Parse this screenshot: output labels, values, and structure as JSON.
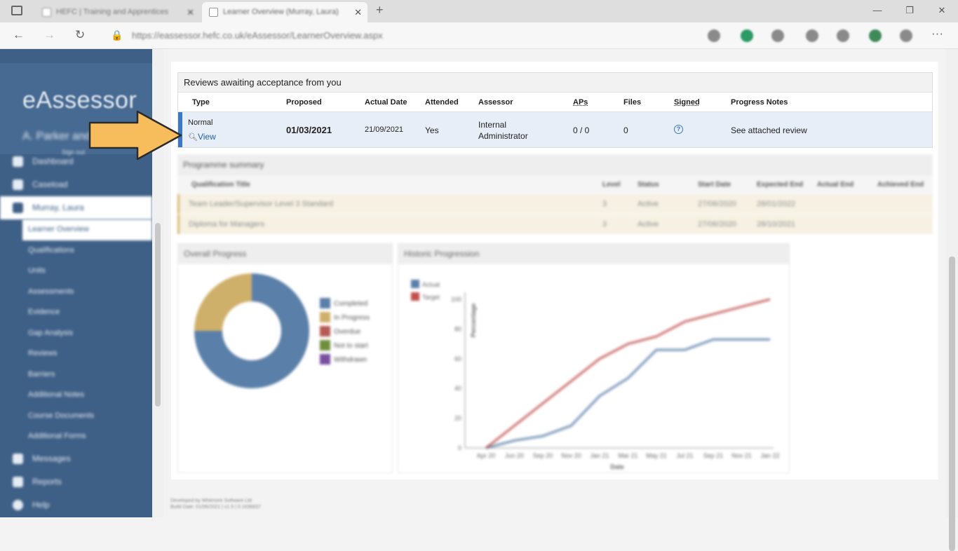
{
  "browser": {
    "tabs": [
      {
        "title": "HEFC | Training and Apprentices"
      },
      {
        "title": "Learner Overview (Murray, Laura)"
      }
    ],
    "url": "https://eassessor.hefc.co.uk/eAssessor/LearnerOverview.aspx"
  },
  "sidebar": {
    "logo": "eAssessor",
    "org_name": "A. Parker and Sons",
    "org_sub": "Sign out",
    "items": [
      {
        "label": "Dashboard",
        "icon": "dashboard-icon"
      },
      {
        "label": "Caseload",
        "icon": "caseload-icon"
      },
      {
        "label": "Murray, Laura",
        "icon": "learner-icon",
        "active": true
      }
    ],
    "subitems": [
      {
        "label": "Learner Overview",
        "current": true
      },
      {
        "label": "Qualifications"
      },
      {
        "label": "Units"
      },
      {
        "label": "Assessments"
      },
      {
        "label": "Evidence"
      },
      {
        "label": "Gap Analysis"
      },
      {
        "label": "Reviews"
      },
      {
        "label": "Barriers"
      },
      {
        "label": "Additional Notes"
      },
      {
        "label": "Course Documents"
      },
      {
        "label": "Additional Forms"
      }
    ],
    "bottom_items": [
      {
        "label": "Messages",
        "icon": "messages-icon"
      },
      {
        "label": "Reports",
        "icon": "reports-icon"
      },
      {
        "label": "Help",
        "icon": "help-icon"
      }
    ]
  },
  "reviews": {
    "title": "Reviews awaiting acceptance from you",
    "columns": [
      "Type",
      "Proposed",
      "Actual Date",
      "Attended",
      "Assessor",
      "APs",
      "Files",
      "Signed",
      "Progress Notes"
    ],
    "row": {
      "type": "Normal",
      "view_label": "View",
      "proposed": "01/03/2021",
      "actual_date": "21/09/2021",
      "attended": "Yes",
      "assessor": "Internal Administrator",
      "aps": "0 / 0",
      "files": "0",
      "signed_icon": "?",
      "progress_notes": "See attached review"
    }
  },
  "programme": {
    "title": "Programme summary",
    "columns": [
      "Qualification Title",
      "Level",
      "Status",
      "Start Date",
      "Expected End",
      "Actual End",
      "Achieved End"
    ],
    "rows": [
      {
        "title": "Team Leader/Supervisor Level 3 Standard",
        "level": "3",
        "status": "Active",
        "start": "27/06/2020",
        "expected": "28/01/2022",
        "actual": "",
        "achieved": ""
      },
      {
        "title": "Diploma for Managers",
        "level": "3",
        "status": "Active",
        "start": "27/06/2020",
        "expected": "28/10/2021",
        "actual": "",
        "achieved": ""
      }
    ]
  },
  "overall_progress": {
    "title": "Overall Progress",
    "legend": [
      "Completed",
      "In Progress",
      "Overdue",
      "Not to start",
      "Withdrawn"
    ],
    "colors": [
      "#5a7fa8",
      "#cfb06a",
      "#b55a55",
      "#6f8f3c",
      "#7a4fa0"
    ],
    "values": [
      75,
      25,
      0,
      0,
      0
    ]
  },
  "historic": {
    "title": "Historic Progression",
    "chart_data": {
      "type": "line",
      "x": [
        "Apr 20",
        "Jun 20",
        "Sep 20",
        "Nov 20",
        "Jan 21",
        "Mar 21",
        "May 21",
        "Jul 21",
        "Sep 21",
        "Nov 21",
        "Jan 22"
      ],
      "series": [
        {
          "name": "Actual",
          "color": "#5a7fa8",
          "values": [
            0,
            5,
            8,
            15,
            35,
            47,
            66,
            66,
            73,
            73,
            73
          ]
        },
        {
          "name": "Target",
          "color": "#c0504d",
          "values": [
            0,
            15,
            30,
            45,
            60,
            70,
            75,
            85,
            90,
            95,
            100
          ]
        }
      ],
      "xlabel": "Date",
      "ylabel": "Percentage",
      "yticks": [
        0,
        20,
        40,
        60,
        80,
        100
      ],
      "ylim": [
        0,
        100
      ]
    }
  },
  "footer": {
    "line1": "Developed by Whitmore Software Ltd",
    "line2": "Build Date: 01/06/2021 | v1.5 | 0.1636837"
  }
}
